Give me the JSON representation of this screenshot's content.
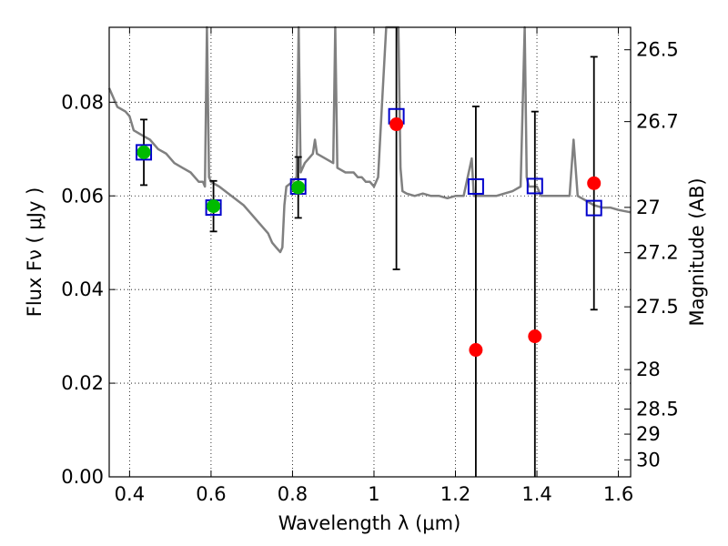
{
  "chart_data": {
    "type": "scatter",
    "xlabel": "Wavelength  λ (μm)",
    "ylabel_left": "Flux  Fν  ( μJy )",
    "ylabel_right": "Magnitude (AB)",
    "xlim": [
      0.35,
      1.63
    ],
    "ylim": [
      0.0,
      0.096
    ],
    "grid": true,
    "x_ticks": [
      {
        "value": 0.4,
        "label": "0.4"
      },
      {
        "value": 0.6,
        "label": "0.6"
      },
      {
        "value": 0.8,
        "label": "0.8"
      },
      {
        "value": 1.0,
        "label": "1"
      },
      {
        "value": 1.2,
        "label": "1.2"
      },
      {
        "value": 1.4,
        "label": "1.4"
      },
      {
        "value": 1.6,
        "label": "1.6"
      }
    ],
    "y_ticks": [
      {
        "value": 0.0,
        "label": "0.00"
      },
      {
        "value": 0.02,
        "label": "0.02"
      },
      {
        "value": 0.04,
        "label": "0.04"
      },
      {
        "value": 0.06,
        "label": "0.06"
      },
      {
        "value": 0.08,
        "label": "0.08"
      }
    ],
    "right_ticks": [
      {
        "value": 26.5,
        "label": "26.5"
      },
      {
        "value": 26.7,
        "label": "26.7"
      },
      {
        "value": 27.0,
        "label": "27"
      },
      {
        "value": 27.2,
        "label": "27.2"
      },
      {
        "value": 27.5,
        "label": "27.5"
      },
      {
        "value": 28.0,
        "label": "28"
      },
      {
        "value": 28.5,
        "label": "28.5"
      },
      {
        "value": 29.0,
        "label": "29"
      },
      {
        "value": 30.0,
        "label": "30"
      }
    ],
    "detections": [
      {
        "x": 0.435,
        "y": 0.0693,
        "err": 0.007
      },
      {
        "x": 0.606,
        "y": 0.0578,
        "err": 0.0054
      },
      {
        "x": 0.814,
        "y": 0.0618,
        "err": 0.0065
      }
    ],
    "nondetections": [
      {
        "x": 1.055,
        "y": 0.0753,
        "err": 0.031
      },
      {
        "x": 1.25,
        "y": 0.0271,
        "err": 0.052
      },
      {
        "x": 1.395,
        "y": 0.03,
        "err": 0.048
      },
      {
        "x": 1.54,
        "y": 0.0627,
        "err": 0.027
      }
    ],
    "model_points": [
      {
        "x": 0.435,
        "y": 0.0693
      },
      {
        "x": 0.606,
        "y": 0.0575
      },
      {
        "x": 0.814,
        "y": 0.062
      },
      {
        "x": 1.055,
        "y": 0.077
      },
      {
        "x": 1.25,
        "y": 0.062
      },
      {
        "x": 1.395,
        "y": 0.0621
      },
      {
        "x": 1.54,
        "y": 0.0574
      }
    ],
    "model_sed": [
      [
        0.35,
        0.083
      ],
      [
        0.37,
        0.079
      ],
      [
        0.39,
        0.078
      ],
      [
        0.4,
        0.077
      ],
      [
        0.41,
        0.074
      ],
      [
        0.43,
        0.073
      ],
      [
        0.45,
        0.072
      ],
      [
        0.47,
        0.07
      ],
      [
        0.49,
        0.069
      ],
      [
        0.51,
        0.067
      ],
      [
        0.53,
        0.066
      ],
      [
        0.55,
        0.065
      ],
      [
        0.56,
        0.064
      ],
      [
        0.57,
        0.063
      ],
      [
        0.58,
        0.063
      ],
      [
        0.585,
        0.062
      ],
      [
        0.59,
        0.096
      ],
      [
        0.595,
        0.064
      ],
      [
        0.6,
        0.063
      ],
      [
        0.62,
        0.062
      ],
      [
        0.65,
        0.06
      ],
      [
        0.68,
        0.058
      ],
      [
        0.7,
        0.056
      ],
      [
        0.72,
        0.054
      ],
      [
        0.74,
        0.052
      ],
      [
        0.75,
        0.05
      ],
      [
        0.76,
        0.049
      ],
      [
        0.77,
        0.048
      ],
      [
        0.775,
        0.049
      ],
      [
        0.78,
        0.058
      ],
      [
        0.785,
        0.062
      ],
      [
        0.8,
        0.063
      ],
      [
        0.81,
        0.064
      ],
      [
        0.815,
        0.096
      ],
      [
        0.82,
        0.065
      ],
      [
        0.83,
        0.067
      ],
      [
        0.84,
        0.068
      ],
      [
        0.85,
        0.069
      ],
      [
        0.855,
        0.072
      ],
      [
        0.86,
        0.069
      ],
      [
        0.88,
        0.068
      ],
      [
        0.9,
        0.067
      ],
      [
        0.905,
        0.096
      ],
      [
        0.91,
        0.066
      ],
      [
        0.93,
        0.065
      ],
      [
        0.95,
        0.065
      ],
      [
        0.96,
        0.064
      ],
      [
        0.97,
        0.064
      ],
      [
        0.98,
        0.063
      ],
      [
        0.99,
        0.063
      ],
      [
        1.0,
        0.062
      ],
      [
        1.01,
        0.064
      ],
      [
        1.02,
        0.08
      ],
      [
        1.03,
        0.096
      ],
      [
        1.04,
        0.096
      ],
      [
        1.05,
        0.096
      ],
      [
        1.06,
        0.096
      ],
      [
        1.065,
        0.066
      ],
      [
        1.07,
        0.061
      ],
      [
        1.08,
        0.0605
      ],
      [
        1.1,
        0.06
      ],
      [
        1.12,
        0.0605
      ],
      [
        1.14,
        0.06
      ],
      [
        1.16,
        0.06
      ],
      [
        1.18,
        0.0595
      ],
      [
        1.2,
        0.06
      ],
      [
        1.22,
        0.06
      ],
      [
        1.24,
        0.068
      ],
      [
        1.245,
        0.06
      ],
      [
        1.26,
        0.06
      ],
      [
        1.28,
        0.06
      ],
      [
        1.3,
        0.06
      ],
      [
        1.32,
        0.0605
      ],
      [
        1.34,
        0.061
      ],
      [
        1.36,
        0.062
      ],
      [
        1.37,
        0.096
      ],
      [
        1.375,
        0.064
      ],
      [
        1.38,
        0.062
      ],
      [
        1.4,
        0.062
      ],
      [
        1.41,
        0.06
      ],
      [
        1.43,
        0.06
      ],
      [
        1.45,
        0.06
      ],
      [
        1.47,
        0.06
      ],
      [
        1.48,
        0.06
      ],
      [
        1.49,
        0.072
      ],
      [
        1.5,
        0.06
      ],
      [
        1.52,
        0.059
      ],
      [
        1.54,
        0.058
      ],
      [
        1.56,
        0.0575
      ],
      [
        1.58,
        0.0575
      ],
      [
        1.6,
        0.057
      ],
      [
        1.63,
        0.0565
      ]
    ],
    "colors": {
      "model_line": "#808080",
      "detection": "#00bb00",
      "nondetection": "#ff0000",
      "model_point": "#0000cc",
      "errorbar": "#000000",
      "grid": "#000000"
    }
  }
}
